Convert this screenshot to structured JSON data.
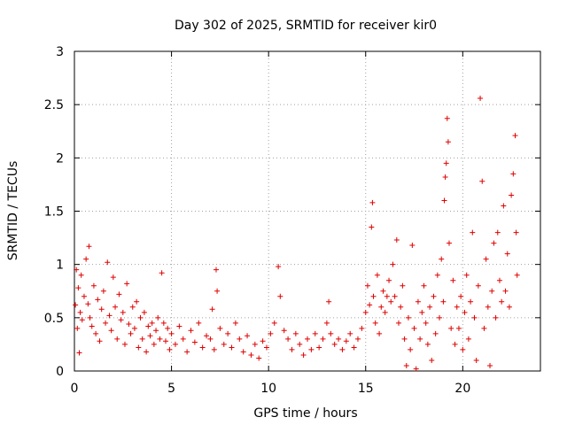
{
  "chart_data": {
    "type": "scatter",
    "title": "Day 302 of 2025, SRMTID for receiver kir0",
    "xlabel": "GPS time / hours",
    "ylabel": "SRMTID / TECUs",
    "xlim": [
      0,
      24
    ],
    "ylim": [
      0,
      3
    ],
    "xticks": [
      "0",
      "5",
      "10",
      "15",
      "20"
    ],
    "yticks": [
      "0",
      "0.5",
      "1",
      "1.5",
      "2",
      "2.5",
      "3"
    ],
    "grid": true,
    "marker": "+",
    "color": "#e00000",
    "series": [
      {
        "name": "SRMTID",
        "points": [
          [
            0.05,
            0.62
          ],
          [
            0.1,
            0.95
          ],
          [
            0.15,
            0.4
          ],
          [
            0.2,
            0.78
          ],
          [
            0.25,
            0.17
          ],
          [
            0.3,
            0.55
          ],
          [
            0.35,
            0.9
          ],
          [
            0.4,
            0.48
          ],
          [
            0.5,
            0.7
          ],
          [
            0.6,
            1.05
          ],
          [
            0.7,
            0.63
          ],
          [
            0.75,
            1.17
          ],
          [
            0.8,
            0.5
          ],
          [
            0.9,
            0.42
          ],
          [
            1.0,
            0.8
          ],
          [
            1.1,
            0.35
          ],
          [
            1.2,
            0.67
          ],
          [
            1.3,
            0.28
          ],
          [
            1.4,
            0.58
          ],
          [
            1.5,
            0.75
          ],
          [
            1.6,
            0.45
          ],
          [
            1.7,
            1.02
          ],
          [
            1.8,
            0.52
          ],
          [
            1.9,
            0.38
          ],
          [
            2.0,
            0.88
          ],
          [
            2.1,
            0.6
          ],
          [
            2.2,
            0.3
          ],
          [
            2.3,
            0.72
          ],
          [
            2.4,
            0.48
          ],
          [
            2.5,
            0.55
          ],
          [
            2.6,
            0.25
          ],
          [
            2.7,
            0.82
          ],
          [
            2.8,
            0.44
          ],
          [
            2.9,
            0.35
          ],
          [
            3.0,
            0.6
          ],
          [
            3.1,
            0.4
          ],
          [
            3.2,
            0.65
          ],
          [
            3.3,
            0.22
          ],
          [
            3.4,
            0.5
          ],
          [
            3.5,
            0.3
          ],
          [
            3.6,
            0.55
          ],
          [
            3.7,
            0.18
          ],
          [
            3.8,
            0.42
          ],
          [
            3.9,
            0.33
          ],
          [
            4.0,
            0.45
          ],
          [
            4.1,
            0.25
          ],
          [
            4.2,
            0.38
          ],
          [
            4.3,
            0.5
          ],
          [
            4.4,
            0.3
          ],
          [
            4.5,
            0.92
          ],
          [
            4.6,
            0.45
          ],
          [
            4.7,
            0.28
          ],
          [
            4.8,
            0.4
          ],
          [
            4.9,
            0.2
          ],
          [
            5.0,
            0.35
          ],
          [
            5.2,
            0.25
          ],
          [
            5.4,
            0.42
          ],
          [
            5.6,
            0.3
          ],
          [
            5.8,
            0.18
          ],
          [
            6.0,
            0.38
          ],
          [
            6.2,
            0.27
          ],
          [
            6.4,
            0.45
          ],
          [
            6.6,
            0.22
          ],
          [
            6.8,
            0.33
          ],
          [
            7.0,
            0.3
          ],
          [
            7.1,
            0.58
          ],
          [
            7.2,
            0.2
          ],
          [
            7.3,
            0.95
          ],
          [
            7.35,
            0.75
          ],
          [
            7.5,
            0.4
          ],
          [
            7.7,
            0.25
          ],
          [
            7.9,
            0.35
          ],
          [
            8.1,
            0.22
          ],
          [
            8.3,
            0.45
          ],
          [
            8.5,
            0.3
          ],
          [
            8.7,
            0.18
          ],
          [
            8.9,
            0.33
          ],
          [
            9.1,
            0.15
          ],
          [
            9.3,
            0.25
          ],
          [
            9.5,
            0.12
          ],
          [
            9.7,
            0.28
          ],
          [
            9.9,
            0.22
          ],
          [
            10.1,
            0.35
          ],
          [
            10.3,
            0.45
          ],
          [
            10.5,
            0.98
          ],
          [
            10.6,
            0.7
          ],
          [
            10.8,
            0.38
          ],
          [
            11.0,
            0.3
          ],
          [
            11.2,
            0.2
          ],
          [
            11.4,
            0.35
          ],
          [
            11.6,
            0.25
          ],
          [
            11.8,
            0.15
          ],
          [
            12.0,
            0.3
          ],
          [
            12.2,
            0.2
          ],
          [
            12.4,
            0.35
          ],
          [
            12.6,
            0.22
          ],
          [
            12.8,
            0.3
          ],
          [
            13.0,
            0.45
          ],
          [
            13.1,
            0.65
          ],
          [
            13.2,
            0.35
          ],
          [
            13.4,
            0.25
          ],
          [
            13.6,
            0.3
          ],
          [
            13.8,
            0.2
          ],
          [
            14.0,
            0.28
          ],
          [
            14.2,
            0.35
          ],
          [
            14.4,
            0.22
          ],
          [
            14.6,
            0.3
          ],
          [
            14.8,
            0.4
          ],
          [
            15.0,
            0.55
          ],
          [
            15.1,
            0.8
          ],
          [
            15.2,
            0.62
          ],
          [
            15.3,
            1.35
          ],
          [
            15.35,
            1.58
          ],
          [
            15.4,
            0.7
          ],
          [
            15.5,
            0.45
          ],
          [
            15.6,
            0.9
          ],
          [
            15.7,
            0.35
          ],
          [
            15.8,
            0.6
          ],
          [
            15.9,
            0.75
          ],
          [
            16.0,
            0.55
          ],
          [
            16.1,
            0.7
          ],
          [
            16.2,
            0.85
          ],
          [
            16.3,
            0.65
          ],
          [
            16.4,
            1.0
          ],
          [
            16.5,
            0.7
          ],
          [
            16.6,
            1.23
          ],
          [
            16.7,
            0.45
          ],
          [
            16.8,
            0.6
          ],
          [
            16.9,
            0.8
          ],
          [
            17.0,
            0.3
          ],
          [
            17.1,
            0.05
          ],
          [
            17.2,
            0.5
          ],
          [
            17.3,
            0.2
          ],
          [
            17.4,
            1.18
          ],
          [
            17.5,
            0.4
          ],
          [
            17.6,
            0.02
          ],
          [
            17.7,
            0.65
          ],
          [
            17.8,
            0.3
          ],
          [
            17.9,
            0.55
          ],
          [
            18.0,
            0.8
          ],
          [
            18.1,
            0.45
          ],
          [
            18.2,
            0.25
          ],
          [
            18.3,
            0.6
          ],
          [
            18.4,
            0.1
          ],
          [
            18.5,
            0.7
          ],
          [
            18.6,
            0.35
          ],
          [
            18.7,
            0.9
          ],
          [
            18.8,
            0.5
          ],
          [
            18.9,
            1.05
          ],
          [
            19.0,
            0.65
          ],
          [
            19.05,
            1.6
          ],
          [
            19.1,
            1.82
          ],
          [
            19.15,
            1.95
          ],
          [
            19.2,
            2.37
          ],
          [
            19.25,
            2.15
          ],
          [
            19.3,
            1.2
          ],
          [
            19.4,
            0.4
          ],
          [
            19.5,
            0.85
          ],
          [
            19.6,
            0.25
          ],
          [
            19.7,
            0.6
          ],
          [
            19.8,
            0.4
          ],
          [
            19.9,
            0.7
          ],
          [
            20.0,
            0.2
          ],
          [
            20.1,
            0.55
          ],
          [
            20.2,
            0.9
          ],
          [
            20.3,
            0.3
          ],
          [
            20.4,
            0.65
          ],
          [
            20.5,
            1.3
          ],
          [
            20.6,
            0.5
          ],
          [
            20.7,
            0.1
          ],
          [
            20.8,
            0.8
          ],
          [
            20.9,
            2.56
          ],
          [
            21.0,
            1.78
          ],
          [
            21.1,
            0.4
          ],
          [
            21.2,
            1.05
          ],
          [
            21.3,
            0.6
          ],
          [
            21.4,
            0.05
          ],
          [
            21.5,
            0.75
          ],
          [
            21.6,
            1.2
          ],
          [
            21.7,
            0.5
          ],
          [
            21.8,
            1.3
          ],
          [
            21.9,
            0.85
          ],
          [
            22.0,
            0.65
          ],
          [
            22.1,
            1.55
          ],
          [
            22.2,
            0.75
          ],
          [
            22.3,
            1.1
          ],
          [
            22.4,
            0.6
          ],
          [
            22.5,
            1.65
          ],
          [
            22.6,
            1.85
          ],
          [
            22.7,
            2.21
          ],
          [
            22.75,
            1.3
          ],
          [
            22.8,
            0.9
          ]
        ]
      }
    ]
  }
}
